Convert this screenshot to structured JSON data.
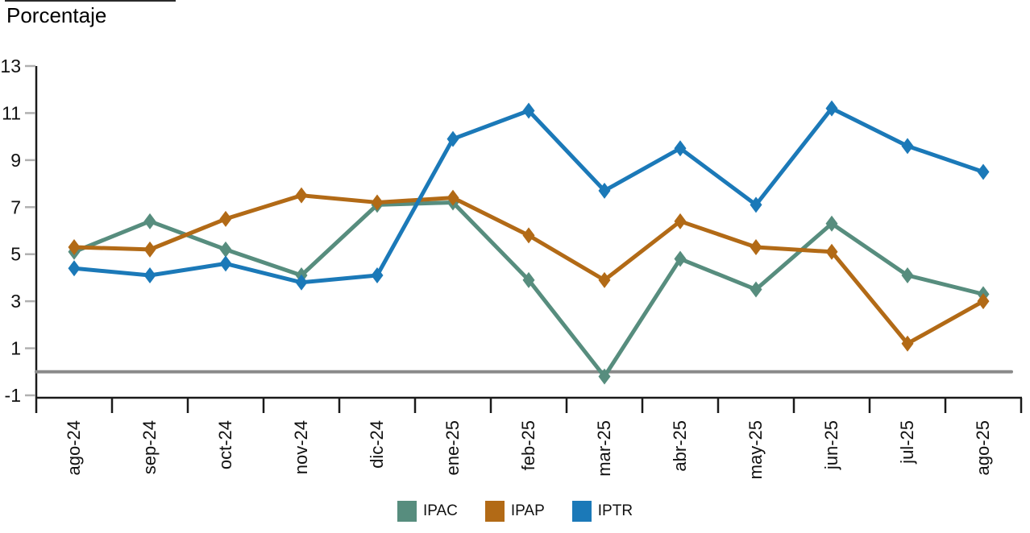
{
  "page": {
    "title": "Porcentaje"
  },
  "colors": {
    "ipac": "#578d7e",
    "ipap": "#b26a16",
    "iptr": "#1b79b8",
    "zero_line": "#8a8a8a",
    "axis": "#1a1a1a",
    "y_tick": "#b0b0b0",
    "text": "#111111"
  },
  "legend": [
    {
      "label": "IPAC",
      "color": "#578d7e"
    },
    {
      "label": "IPAP",
      "color": "#b26a16"
    },
    {
      "label": "IPTR",
      "color": "#1b79b8"
    }
  ],
  "chart_data": {
    "type": "line",
    "title": "Porcentaje",
    "categories": [
      "ago-24",
      "sep-24",
      "oct-24",
      "nov-24",
      "dic-24",
      "ene-25",
      "feb-25",
      "mar-25",
      "abr-25",
      "may-25",
      "jun-25",
      "jul-25",
      "ago-25"
    ],
    "series": [
      {
        "name": "IPAC",
        "color": "#578d7e",
        "values": [
          5.1,
          6.4,
          5.2,
          4.1,
          7.1,
          7.2,
          3.9,
          -0.2,
          4.8,
          3.5,
          6.3,
          4.1,
          3.3
        ]
      },
      {
        "name": "IPAP",
        "color": "#b26a16",
        "values": [
          5.3,
          5.2,
          6.5,
          7.5,
          7.2,
          7.4,
          5.8,
          3.9,
          6.4,
          5.3,
          5.1,
          1.2,
          3.0
        ]
      },
      {
        "name": "IPTR",
        "color": "#1b79b8",
        "values": [
          4.4,
          4.1,
          4.6,
          3.8,
          4.1,
          9.9,
          11.1,
          7.7,
          9.5,
          7.1,
          11.2,
          9.6,
          8.5
        ]
      }
    ],
    "ylabel": "Porcentaje",
    "xlabel": "",
    "ylim": [
      -1,
      13
    ],
    "yticks": [
      -1,
      1,
      3,
      5,
      7,
      9,
      11,
      13
    ],
    "zero_line": true,
    "marker": "diamond",
    "grid": false,
    "legend_position": "bottom"
  }
}
